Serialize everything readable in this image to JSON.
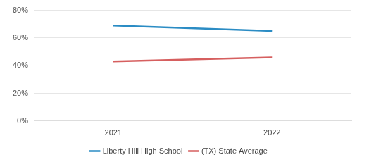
{
  "chart_data": {
    "type": "line",
    "categories": [
      "2021",
      "2022"
    ],
    "series": [
      {
        "name": "Liberty Hill High School",
        "color": "#2b8cc4",
        "values": [
          69,
          65
        ]
      },
      {
        "name": "(TX) State Average",
        "color": "#d65f5f",
        "values": [
          43,
          46
        ]
      }
    ],
    "ylim": [
      0,
      80
    ],
    "yticks": [
      {
        "value": 0,
        "label": "0%"
      },
      {
        "value": 20,
        "label": "20%"
      },
      {
        "value": 40,
        "label": "40%"
      },
      {
        "value": 60,
        "label": "60%"
      },
      {
        "value": 80,
        "label": "80%"
      }
    ],
    "grid": true,
    "legend": "bottom"
  }
}
